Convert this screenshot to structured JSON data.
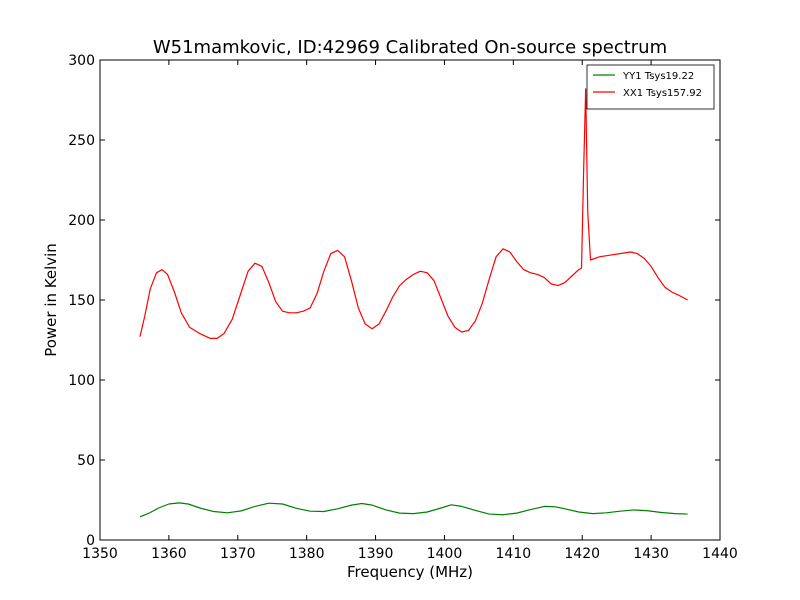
{
  "chart_data": {
    "type": "line",
    "title": "W51mamkovic, ID:42969 Calibrated On-source spectrum",
    "xlabel": "Frequency (MHz)",
    "ylabel": "Power in Kelvin",
    "xlim": [
      1350,
      1440
    ],
    "ylim": [
      0,
      300
    ],
    "xticks": [
      1350,
      1360,
      1370,
      1380,
      1390,
      1400,
      1410,
      1420,
      1430,
      1440
    ],
    "yticks": [
      0,
      50,
      100,
      150,
      200,
      250,
      300
    ],
    "grid": false,
    "legend_position": "top-right",
    "series": [
      {
        "name": "YY1 Tsys19.22",
        "color": "#008000",
        "x": [
          1355.8,
          1357.0,
          1358.5,
          1360.0,
          1361.5,
          1362.8,
          1364.5,
          1366.5,
          1368.5,
          1370.5,
          1372.5,
          1374.5,
          1376.5,
          1378.5,
          1380.5,
          1382.5,
          1384.5,
          1386.5,
          1388.0,
          1389.5,
          1391.5,
          1393.5,
          1395.5,
          1397.5,
          1399.5,
          1401.0,
          1402.5,
          1404.5,
          1406.5,
          1408.5,
          1410.5,
          1412.5,
          1414.5,
          1416.0,
          1417.5,
          1419.5,
          1421.5,
          1423.5,
          1425.5,
          1427.5,
          1429.5,
          1431.5,
          1433.5,
          1435.3
        ],
        "y": [
          14.5,
          16.5,
          20.0,
          22.5,
          23.2,
          22.5,
          20.0,
          17.8,
          17.0,
          18.2,
          21.0,
          23.0,
          22.5,
          19.8,
          18.0,
          17.8,
          19.5,
          21.8,
          22.8,
          21.8,
          18.8,
          16.8,
          16.5,
          17.5,
          20.0,
          22.0,
          21.0,
          18.5,
          16.2,
          15.8,
          16.8,
          19.0,
          21.0,
          20.8,
          19.5,
          17.5,
          16.5,
          17.0,
          18.0,
          18.8,
          18.3,
          17.2,
          16.5,
          16.2
        ]
      },
      {
        "name": "XX1 Tsys157.92",
        "color": "#ff0000",
        "x": [
          1355.8,
          1356.5,
          1357.3,
          1358.2,
          1359.0,
          1359.8,
          1360.8,
          1361.8,
          1363.0,
          1364.5,
          1366.0,
          1367.0,
          1368.0,
          1369.2,
          1370.5,
          1371.5,
          1372.5,
          1373.5,
          1374.5,
          1375.5,
          1376.5,
          1377.5,
          1378.5,
          1379.5,
          1380.5,
          1381.5,
          1382.5,
          1383.5,
          1384.5,
          1385.5,
          1386.5,
          1387.5,
          1388.5,
          1389.5,
          1390.5,
          1391.5,
          1392.5,
          1393.5,
          1394.5,
          1395.5,
          1396.5,
          1397.5,
          1398.5,
          1399.5,
          1400.5,
          1401.5,
          1402.5,
          1403.5,
          1404.5,
          1405.5,
          1406.5,
          1407.5,
          1408.5,
          1409.5,
          1410.5,
          1411.5,
          1412.5,
          1413.5,
          1414.5,
          1415.5,
          1416.5,
          1417.5,
          1418.5,
          1419.5,
          1419.9,
          1420.2,
          1420.5,
          1420.8,
          1421.2,
          1422.5,
          1424.0,
          1425.5,
          1427.0,
          1428.0,
          1429.0,
          1430.0,
          1431.0,
          1432.0,
          1433.0,
          1434.0,
          1435.3
        ],
        "y": [
          127,
          140,
          157,
          167,
          169,
          166,
          155,
          142,
          133,
          129,
          126,
          126,
          129,
          138,
          155,
          168,
          173,
          171,
          161,
          149,
          143,
          142,
          142,
          143,
          145,
          154,
          168,
          179,
          181,
          177,
          162,
          145,
          135,
          132,
          135,
          143,
          152,
          159,
          163,
          166,
          168,
          167,
          162,
          151,
          140,
          133,
          130,
          131,
          137,
          148,
          163,
          177,
          182,
          180,
          174,
          169,
          167,
          166,
          164,
          160,
          159,
          161,
          165,
          169,
          170,
          230,
          282,
          205,
          175,
          177,
          178,
          179,
          180,
          179,
          176,
          171,
          164,
          158,
          155,
          153,
          150
        ]
      }
    ]
  }
}
